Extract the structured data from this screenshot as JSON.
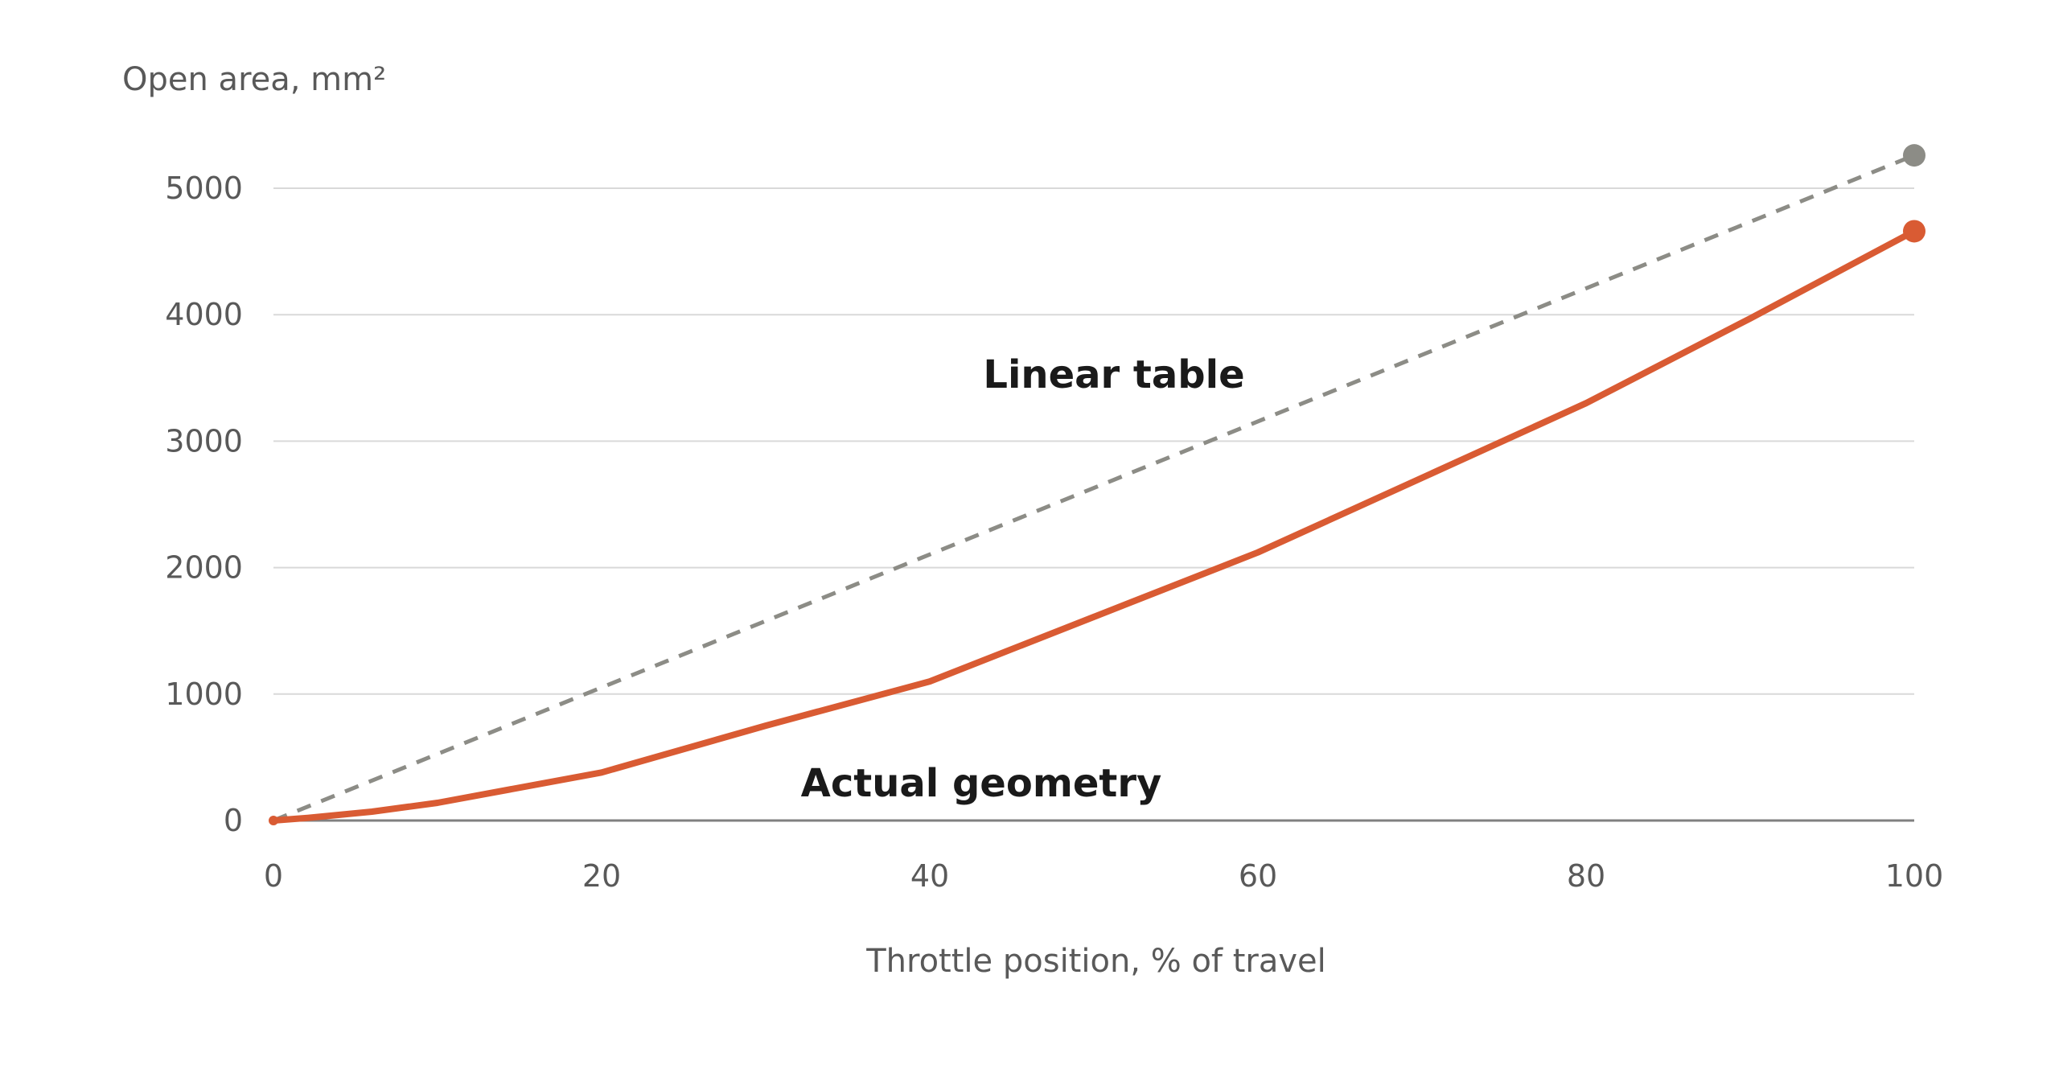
{
  "chart_data": {
    "type": "line",
    "xlabel": "Throttle position, % of travel",
    "ylabel": "Open area, mm²",
    "xlim": [
      0,
      100
    ],
    "ylim": [
      0,
      5000
    ],
    "xticks": [
      0,
      20,
      40,
      60,
      80,
      100
    ],
    "yticks": [
      0,
      1000,
      2000,
      3000,
      4000,
      5000
    ],
    "grid": "horizontal",
    "series": [
      {
        "name": "Linear table",
        "style": "dashed",
        "color": "#8c8c86",
        "x": [
          0,
          100
        ],
        "y": [
          0,
          5260
        ]
      },
      {
        "name": "Actual geometry",
        "style": "solid",
        "color": "#d95b33",
        "x": [
          0,
          2,
          6,
          10,
          20,
          30,
          40,
          50,
          60,
          70,
          80,
          90,
          100
        ],
        "y": [
          0,
          20,
          70,
          140,
          380,
          750,
          1100,
          1610,
          2120,
          2710,
          3300,
          3970,
          4660
        ]
      }
    ]
  }
}
